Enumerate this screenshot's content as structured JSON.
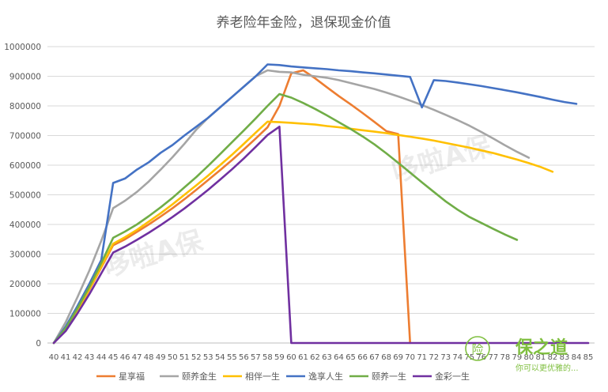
{
  "chart_data": {
    "type": "line",
    "title": "养老险年金险，退保现金价值",
    "xlabel": "",
    "ylabel": "",
    "x": [
      40,
      41,
      42,
      43,
      44,
      45,
      46,
      47,
      48,
      49,
      50,
      51,
      52,
      53,
      54,
      55,
      56,
      57,
      58,
      59,
      60,
      61,
      62,
      63,
      64,
      65,
      66,
      67,
      68,
      69,
      70,
      71,
      72,
      73,
      74,
      75,
      76,
      77,
      78,
      79,
      80,
      81,
      82,
      83,
      84,
      85
    ],
    "ylim": [
      0,
      1000000
    ],
    "yticks": [
      0,
      100000,
      200000,
      300000,
      400000,
      500000,
      600000,
      700000,
      800000,
      900000,
      1000000
    ],
    "ytick_labels": [
      "0",
      "100000",
      "200000",
      "300000",
      "400000",
      "500000",
      "600000",
      "700000",
      "800000",
      "900000",
      "1000000"
    ],
    "grid": true,
    "legend_position": "bottom",
    "series": [
      {
        "name": "星享福",
        "color": "#ED7D31",
        "values": [
          0,
          45000,
          110000,
          180000,
          255000,
          330000,
          350000,
          375000,
          400000,
          427000,
          455000,
          485000,
          517000,
          550000,
          583000,
          617000,
          653000,
          690000,
          728000,
          800000,
          910000,
          920000,
          893000,
          863000,
          833000,
          805000,
          776000,
          746000,
          715000,
          705000,
          0,
          null,
          null,
          null,
          null,
          null,
          null,
          null,
          null,
          null,
          null,
          null,
          null,
          null,
          null,
          null
        ]
      },
      {
        "name": "颐养金生",
        "color": "#A5A5A5",
        "values": [
          0,
          70000,
          155000,
          245000,
          345000,
          455000,
          480000,
          510000,
          545000,
          585000,
          627000,
          672000,
          720000,
          760000,
          795000,
          830000,
          865000,
          900000,
          920000,
          915000,
          913000,
          905000,
          900000,
          895000,
          887000,
          877000,
          867000,
          857000,
          845000,
          832000,
          818000,
          803000,
          787000,
          770000,
          752000,
          733000,
          712000,
          690000,
          667000,
          645000,
          625000,
          null,
          null,
          null,
          null,
          null
        ]
      },
      {
        "name": "相伴一生",
        "color": "#FFC000",
        "values": [
          0,
          48000,
          112000,
          183000,
          258000,
          335000,
          357000,
          382000,
          410000,
          438000,
          468000,
          500000,
          532000,
          565000,
          600000,
          635000,
          672000,
          710000,
          747000,
          745000,
          743000,
          740000,
          737000,
          732000,
          728000,
          723000,
          718000,
          713000,
          708000,
          702000,
          696000,
          690000,
          683000,
          675000,
          667000,
          659000,
          650000,
          641000,
          630000,
          619000,
          607000,
          594000,
          578000,
          null,
          null,
          null
        ]
      },
      {
        "name": "逸享人生",
        "color": "#4472C4",
        "values": [
          0,
          55000,
          125000,
          200000,
          280000,
          540000,
          555000,
          585000,
          610000,
          642000,
          668000,
          700000,
          730000,
          760000,
          795000,
          830000,
          865000,
          900000,
          940000,
          938000,
          933000,
          930000,
          927000,
          924000,
          920000,
          917000,
          913000,
          910000,
          906000,
          902000,
          898000,
          795000,
          887000,
          884000,
          879000,
          873000,
          867000,
          860000,
          853000,
          846000,
          838000,
          830000,
          821000,
          813000,
          807000,
          null
        ]
      },
      {
        "name": "颐养一生",
        "color": "#70AD47",
        "values": [
          0,
          50000,
          117000,
          190000,
          270000,
          355000,
          376000,
          400000,
          428000,
          458000,
          490000,
          525000,
          560000,
          598000,
          637000,
          677000,
          717000,
          758000,
          800000,
          840000,
          828000,
          810000,
          790000,
          768000,
          745000,
          722000,
          697000,
          670000,
          640000,
          608000,
          575000,
          542000,
          510000,
          478000,
          450000,
          425000,
          405000,
          385000,
          366000,
          348000,
          null,
          null,
          null,
          null,
          null,
          null
        ]
      },
      {
        "name": "金彩一生",
        "color": "#7030A0",
        "values": [
          0,
          40000,
          100000,
          165000,
          235000,
          305000,
          325000,
          348000,
          372000,
          398000,
          425000,
          454000,
          485000,
          517000,
          551000,
          586000,
          623000,
          662000,
          702000,
          730000,
          0,
          0,
          0,
          0,
          0,
          0,
          0,
          0,
          0,
          0,
          0,
          0,
          0,
          0,
          0,
          0,
          0,
          0,
          0,
          0,
          0,
          0,
          0,
          0,
          0,
          0
        ]
      }
    ]
  },
  "watermark": {
    "text": "哆啦A保"
  },
  "logo": {
    "title": "保之道",
    "slogan": "你可以更优雅的...",
    "seal_char": "险"
  }
}
